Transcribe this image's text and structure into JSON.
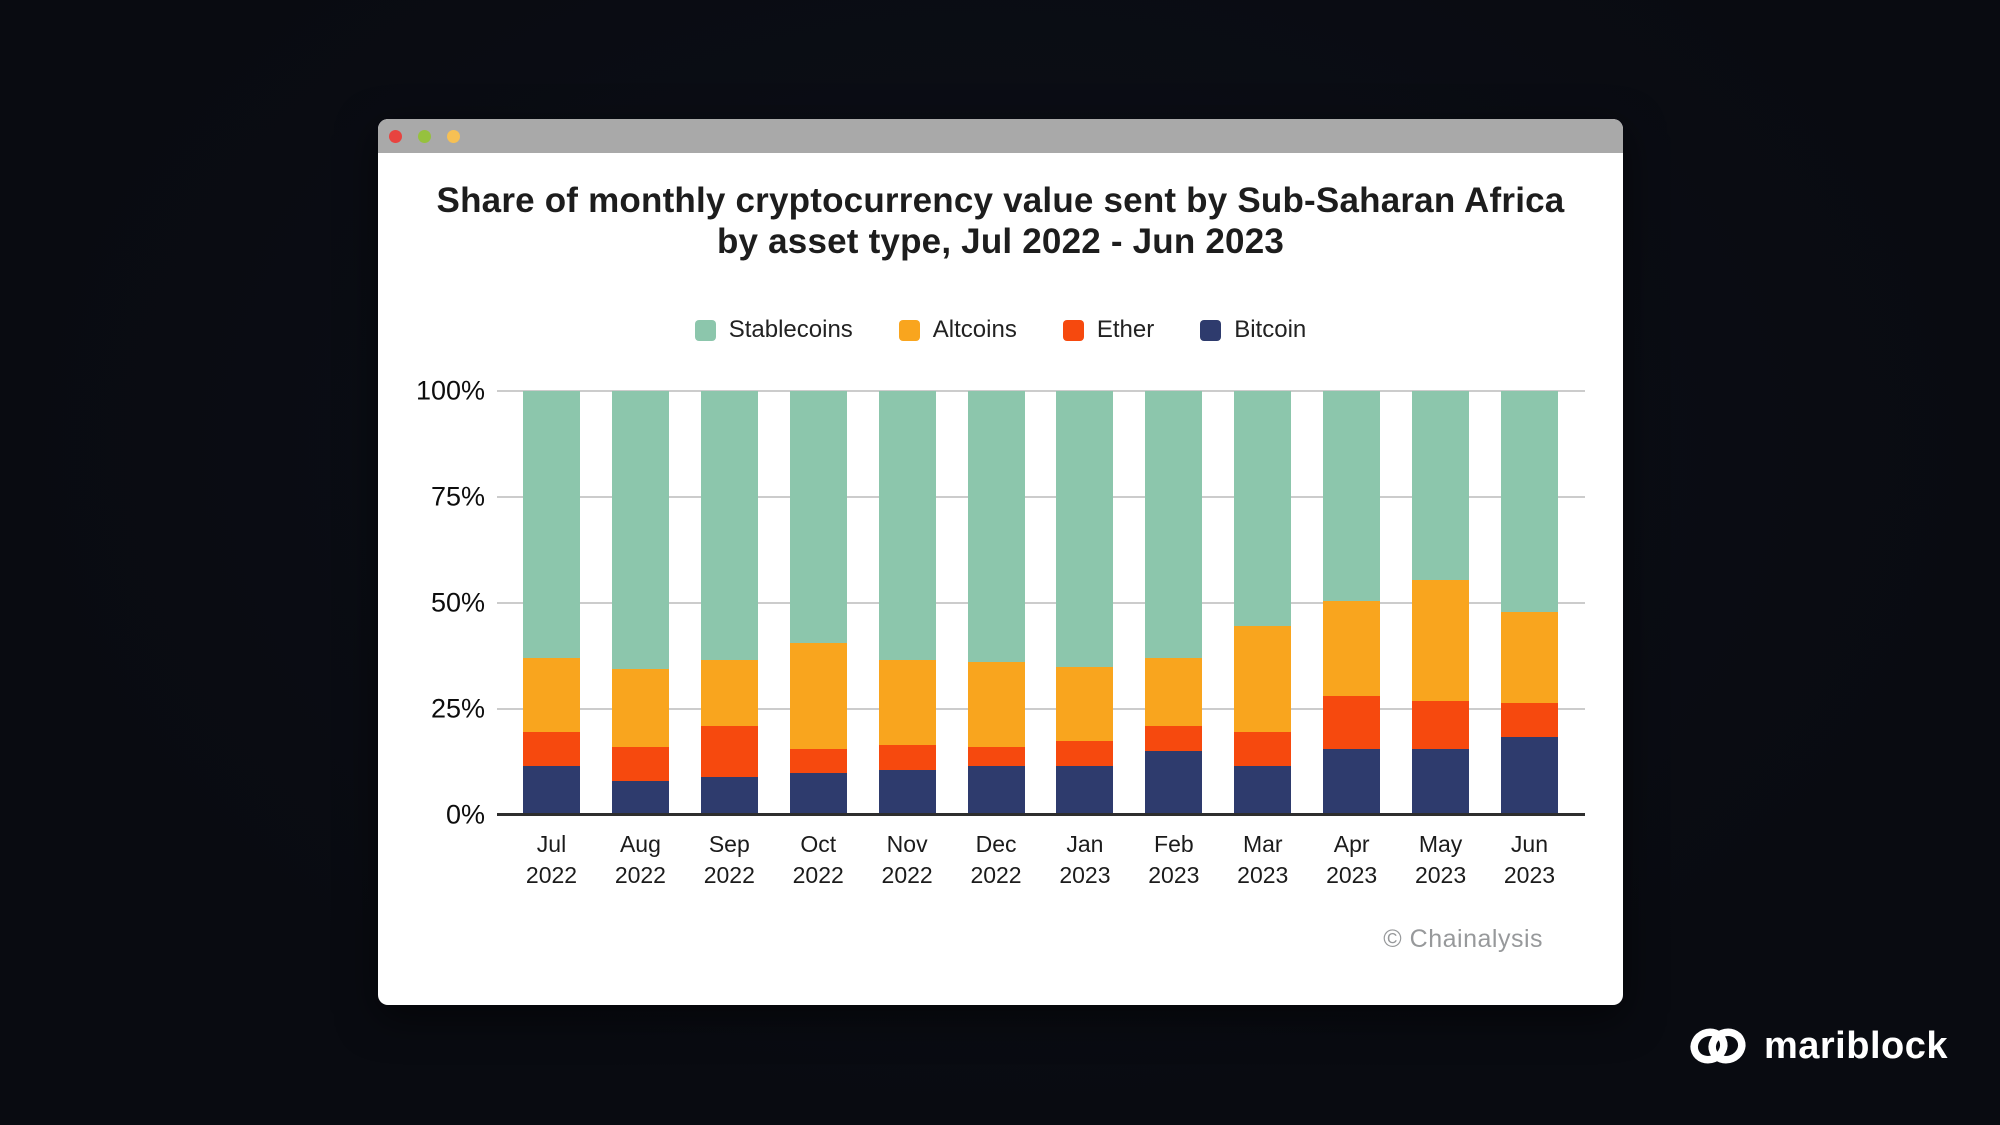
{
  "window": {
    "titlebar_color": "#a9a9a9",
    "traffic_lights": [
      {
        "name": "close-button",
        "color": "#e8433f"
      },
      {
        "name": "minimize-button",
        "color": "#96c13e"
      },
      {
        "name": "maximize-button",
        "color": "#f6c054"
      }
    ]
  },
  "chart": {
    "title": "Share of monthly cryptocurrency value sent by Sub-Saharan Africa by asset type, Jul 2022 - Jun 2023",
    "attribution": "© Chainalysis"
  },
  "chart_data": {
    "type": "bar",
    "stacked": true,
    "title": "Share of monthly cryptocurrency value sent by Sub-Saharan Africa by asset type, Jul 2022 - Jun 2023",
    "categories": [
      "Jul 2022",
      "Aug 2022",
      "Sep 2022",
      "Oct 2022",
      "Nov 2022",
      "Dec 2022",
      "Jan 2023",
      "Feb 2023",
      "Mar 2023",
      "Apr 2023",
      "May 2023",
      "Jun 2023"
    ],
    "category_labels": [
      [
        "Jul",
        "2022"
      ],
      [
        "Aug",
        "2022"
      ],
      [
        "Sep",
        "2022"
      ],
      [
        "Oct",
        "2022"
      ],
      [
        "Nov",
        "2022"
      ],
      [
        "Dec",
        "2022"
      ],
      [
        "Jan",
        "2023"
      ],
      [
        "Feb",
        "2023"
      ],
      [
        "Mar",
        "2023"
      ],
      [
        "Apr",
        "2023"
      ],
      [
        "May",
        "2023"
      ],
      [
        "Jun",
        "2023"
      ]
    ],
    "series": [
      {
        "name": "Stablecoins",
        "color": "#8cc6ac",
        "values": [
          63,
          65.5,
          63.5,
          59.5,
          63.5,
          64,
          65,
          63,
          55.5,
          49.5,
          44.5,
          52
        ]
      },
      {
        "name": "Altcoins",
        "color": "#f9a51e",
        "values": [
          17.5,
          18.5,
          15.5,
          25,
          20,
          20,
          17.5,
          16,
          25,
          22.5,
          28.5,
          21.5
        ]
      },
      {
        "name": "Ether",
        "color": "#f6490e",
        "values": [
          8,
          8,
          12,
          5.5,
          6,
          4.5,
          6,
          6,
          8,
          12.5,
          11.5,
          8
        ]
      },
      {
        "name": "Bitcoin",
        "color": "#2e3b6d",
        "values": [
          11.5,
          8,
          9,
          10,
          10.5,
          11.5,
          11.5,
          15,
          11.5,
          15.5,
          15.5,
          18.5
        ]
      }
    ],
    "stack_order_top_to_bottom": [
      "Stablecoins",
      "Altcoins",
      "Ether",
      "Bitcoin"
    ],
    "ylim": [
      0,
      100
    ],
    "yticks": [
      {
        "value": 0,
        "label": "0%"
      },
      {
        "value": 25,
        "label": "25%"
      },
      {
        "value": 50,
        "label": "50%"
      },
      {
        "value": 75,
        "label": "75%"
      },
      {
        "value": 100,
        "label": "100%"
      }
    ],
    "grid": true,
    "legend_position": "top"
  },
  "brand": {
    "name": "mariblock"
  }
}
